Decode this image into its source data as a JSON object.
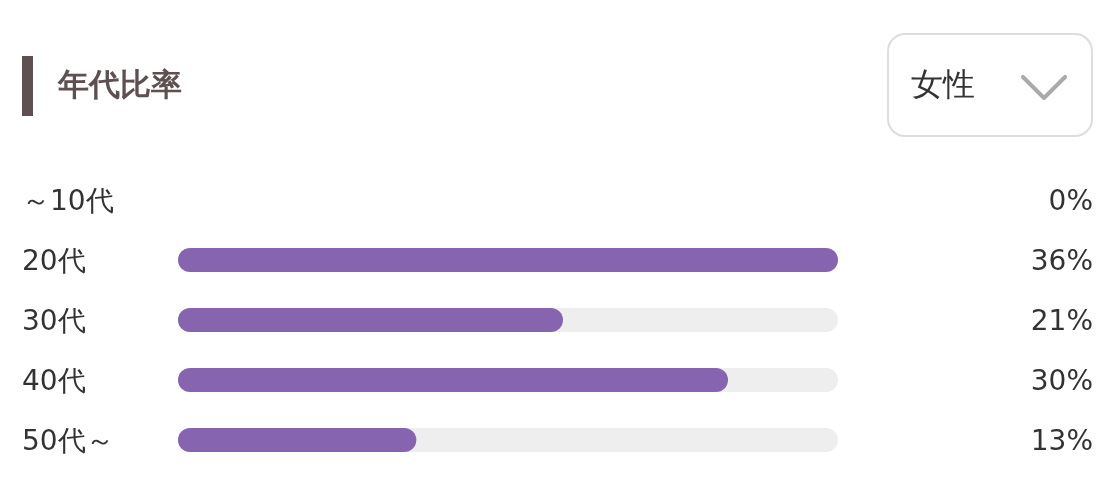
{
  "chart_data": {
    "type": "bar",
    "orientation": "horizontal",
    "title": "年代比率",
    "categories": [
      "～10代",
      "20代",
      "30代",
      "40代",
      "50代～"
    ],
    "values": [
      0,
      36,
      21,
      30,
      13
    ],
    "value_labels": [
      "0%",
      "36%",
      "21%",
      "30%",
      "13%"
    ],
    "color": "#8664b0",
    "annotations": [
      "女性"
    ],
    "grid": false,
    "legend": false
  }
}
